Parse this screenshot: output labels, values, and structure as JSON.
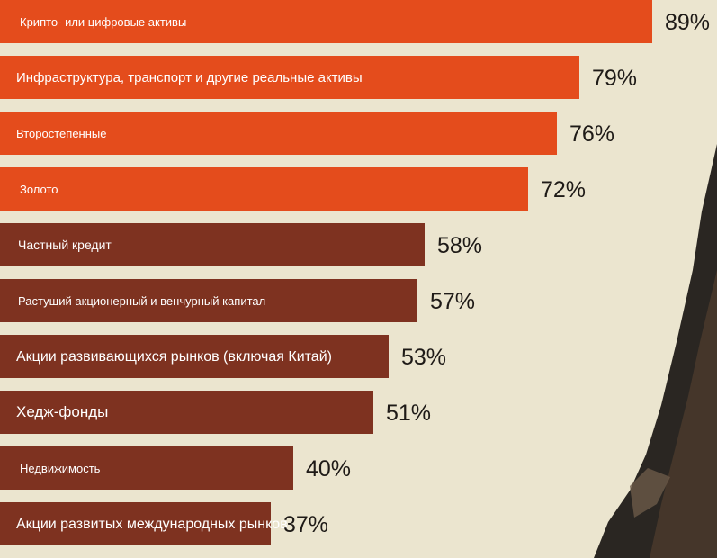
{
  "colors": {
    "background": "#ebe5cf",
    "accent_orange": "#e44c1c",
    "accent_brown": "#7e3220",
    "label_text": "#ffffff",
    "value_text": "#1e1a17",
    "decor_dark": "#2a2622"
  },
  "chart_data": {
    "type": "bar",
    "orientation": "horizontal",
    "value_unit": "%",
    "xlim": [
      0,
      100
    ],
    "grid": false,
    "categories": [
      "Крипто- или цифровые активы",
      "Инфраструктура, транспорт и другие реальные активы",
      "Второстепенные",
      "Золото",
      "Частный кредит",
      "Растущий акционерный и венчурный капитал",
      "Акции развивающихся рынков (включая Китай)",
      "Хедж-фонды",
      "Недвижимость",
      "Акции развитых международных рынков"
    ],
    "values": [
      89,
      79,
      76,
      72,
      58,
      57,
      53,
      51,
      40,
      37
    ],
    "value_labels": [
      "89%",
      "79%",
      "76%",
      "72%",
      "58%",
      "57%",
      "53%",
      "51%",
      "40%",
      "37%"
    ],
    "bar_colors": [
      "#e44c1c",
      "#e44c1c",
      "#e44c1c",
      "#e44c1c",
      "#7e3220",
      "#7e3220",
      "#7e3220",
      "#7e3220",
      "#7e3220",
      "#7e3220"
    ]
  }
}
